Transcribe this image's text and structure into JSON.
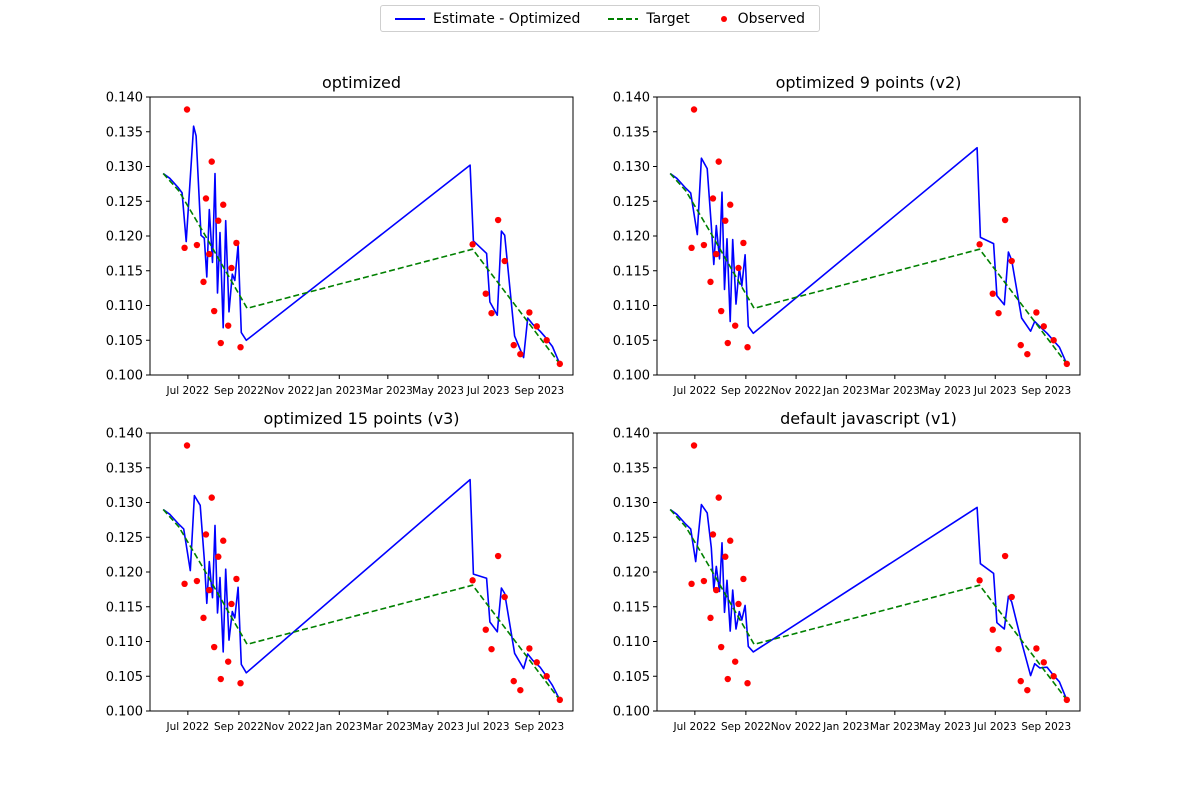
{
  "legend": {
    "estimate_label": "Estimate - Optimized",
    "target_label": "Target",
    "observed_label": "Observed"
  },
  "colors": {
    "estimate": "#0000ff",
    "target": "#008000",
    "observed": "#ff0000",
    "axes": "#000000"
  },
  "chart_data": [
    {
      "type": "line",
      "title": "optimized",
      "xlabel": "",
      "ylabel": "",
      "ylim": [
        0.1,
        0.14
      ],
      "xlim": [
        "2022-05-16",
        "2023-10-12"
      ],
      "yticks": [
        "0.100",
        "0.105",
        "0.110",
        "0.115",
        "0.120",
        "0.125",
        "0.130",
        "0.135",
        "0.140"
      ],
      "xticks": [
        "Jul 2022",
        "Sep 2022",
        "Nov 2022",
        "Jan 2023",
        "Mar 2023",
        "May 2023",
        "Jul 2023",
        "Sep 2023"
      ],
      "series": [
        {
          "name": "Estimate - Optimized",
          "style": "solid",
          "x": [
            "2022-06-01",
            "2022-06-09",
            "2022-06-19",
            "2022-06-24",
            "2022-06-29",
            "2022-07-08",
            "2022-07-11",
            "2022-07-17",
            "2022-07-21",
            "2022-07-24",
            "2022-07-27",
            "2022-07-31",
            "2022-08-03",
            "2022-08-06",
            "2022-08-09",
            "2022-08-13",
            "2022-08-16",
            "2022-08-20",
            "2022-08-24",
            "2022-08-27",
            "2022-08-31",
            "2022-09-04",
            "2022-09-10",
            "2023-06-09",
            "2023-06-13",
            "2023-06-29",
            "2023-07-03",
            "2023-07-12",
            "2023-07-17",
            "2023-07-21",
            "2023-08-02",
            "2023-08-13",
            "2023-08-18",
            "2023-08-24",
            "2023-09-02",
            "2023-09-08",
            "2023-09-17",
            "2023-09-26"
          ],
          "y": [
            0.129,
            0.1283,
            0.127,
            0.1262,
            0.1192,
            0.1358,
            0.1344,
            0.1201,
            0.1197,
            0.1141,
            0.1238,
            0.1162,
            0.129,
            0.1118,
            0.1205,
            0.1068,
            0.1222,
            0.1091,
            0.1145,
            0.1136,
            0.1187,
            0.1061,
            0.105,
            0.1302,
            0.1193,
            0.1175,
            0.1105,
            0.1086,
            0.1207,
            0.1201,
            0.1056,
            0.1025,
            0.1082,
            0.1073,
            0.1063,
            0.1055,
            0.1041,
            0.1016
          ]
        },
        {
          "name": "Target",
          "style": "dashed",
          "x": [
            "2022-06-01",
            "2022-06-20",
            "2022-07-20",
            "2022-09-11",
            "2023-06-12",
            "2023-09-26"
          ],
          "y": [
            0.129,
            0.1265,
            0.1205,
            0.1096,
            0.1181,
            0.1016
          ]
        },
        {
          "name": "Observed",
          "style": "points",
          "x": [
            "2022-06-27",
            "2022-06-30",
            "2022-07-12",
            "2022-07-20",
            "2022-07-23",
            "2022-07-27",
            "2022-07-30",
            "2022-08-02",
            "2022-08-07",
            "2022-08-10",
            "2022-08-13",
            "2022-08-19",
            "2022-08-23",
            "2022-08-29",
            "2022-09-03",
            "2023-06-12",
            "2023-06-28",
            "2023-07-05",
            "2023-07-13",
            "2023-07-21",
            "2023-08-01",
            "2023-08-09",
            "2023-08-20",
            "2023-08-29",
            "2023-09-10",
            "2023-09-26"
          ],
          "y": [
            0.1183,
            0.1382,
            0.1187,
            0.1134,
            0.1254,
            0.1174,
            0.1307,
            0.1092,
            0.1222,
            0.1046,
            0.1245,
            0.1071,
            0.1154,
            0.119,
            0.104,
            0.1188,
            0.1117,
            0.1089,
            0.1223,
            0.1164,
            0.1043,
            0.103,
            0.109,
            0.107,
            0.105,
            0.1016
          ]
        }
      ]
    },
    {
      "type": "line",
      "title": "optimized 9 points (v2)",
      "xlabel": "",
      "ylabel": "",
      "ylim": [
        0.1,
        0.14
      ],
      "xlim": [
        "2022-05-16",
        "2023-10-12"
      ],
      "yticks": [
        "0.100",
        "0.105",
        "0.110",
        "0.115",
        "0.120",
        "0.125",
        "0.130",
        "0.135",
        "0.140"
      ],
      "xticks": [
        "Jul 2022",
        "Sep 2022",
        "Nov 2022",
        "Jan 2023",
        "Mar 2023",
        "May 2023",
        "Jul 2023",
        "Sep 2023"
      ],
      "series": [
        {
          "name": "Estimate - Optimized",
          "style": "solid",
          "x": [
            "2022-06-01",
            "2022-06-09",
            "2022-06-19",
            "2022-06-26",
            "2022-07-04",
            "2022-07-09",
            "2022-07-16",
            "2022-07-21",
            "2022-07-24",
            "2022-07-27",
            "2022-07-31",
            "2022-08-03",
            "2022-08-06",
            "2022-08-09",
            "2022-08-13",
            "2022-08-16",
            "2022-08-20",
            "2022-08-24",
            "2022-08-27",
            "2022-08-31",
            "2022-09-04",
            "2022-09-10",
            "2023-06-09",
            "2023-06-13",
            "2023-06-29",
            "2023-07-03",
            "2023-07-12",
            "2023-07-17",
            "2023-07-21",
            "2023-08-02",
            "2023-08-13",
            "2023-08-18",
            "2023-08-24",
            "2023-09-02",
            "2023-09-08",
            "2023-09-17",
            "2023-09-26"
          ],
          "y": [
            0.129,
            0.1283,
            0.127,
            0.1262,
            0.1202,
            0.1312,
            0.1297,
            0.1215,
            0.1159,
            0.1215,
            0.1167,
            0.1263,
            0.1123,
            0.1196,
            0.1077,
            0.1195,
            0.1102,
            0.1155,
            0.1128,
            0.1173,
            0.107,
            0.106,
            0.1327,
            0.1198,
            0.1189,
            0.1114,
            0.1101,
            0.1177,
            0.1165,
            0.1082,
            0.1063,
            0.1077,
            0.107,
            0.106,
            0.1052,
            0.104,
            0.1016
          ]
        },
        {
          "name": "Target",
          "style": "dashed",
          "x": [
            "2022-06-01",
            "2022-06-20",
            "2022-07-20",
            "2022-09-11",
            "2023-06-12",
            "2023-09-26"
          ],
          "y": [
            0.129,
            0.1265,
            0.1205,
            0.1096,
            0.1181,
            0.1016
          ]
        },
        {
          "name": "Observed",
          "style": "points",
          "x": [
            "2022-06-27",
            "2022-06-30",
            "2022-07-12",
            "2022-07-20",
            "2022-07-23",
            "2022-07-27",
            "2022-07-30",
            "2022-08-02",
            "2022-08-07",
            "2022-08-10",
            "2022-08-13",
            "2022-08-19",
            "2022-08-23",
            "2022-08-29",
            "2022-09-03",
            "2023-06-12",
            "2023-06-28",
            "2023-07-05",
            "2023-07-13",
            "2023-07-21",
            "2023-08-01",
            "2023-08-09",
            "2023-08-20",
            "2023-08-29",
            "2023-09-10",
            "2023-09-26"
          ],
          "y": [
            0.1183,
            0.1382,
            0.1187,
            0.1134,
            0.1254,
            0.1174,
            0.1307,
            0.1092,
            0.1222,
            0.1046,
            0.1245,
            0.1071,
            0.1154,
            0.119,
            0.104,
            0.1188,
            0.1117,
            0.1089,
            0.1223,
            0.1164,
            0.1043,
            0.103,
            0.109,
            0.107,
            0.105,
            0.1016
          ]
        }
      ]
    },
    {
      "type": "line",
      "title": "optimized 15 points (v3)",
      "xlabel": "",
      "ylabel": "",
      "ylim": [
        0.1,
        0.14
      ],
      "xlim": [
        "2022-05-16",
        "2023-10-12"
      ],
      "yticks": [
        "0.100",
        "0.105",
        "0.110",
        "0.115",
        "0.120",
        "0.125",
        "0.130",
        "0.135",
        "0.140"
      ],
      "xticks": [
        "Jul 2022",
        "Sep 2022",
        "Nov 2022",
        "Jan 2023",
        "Mar 2023",
        "May 2023",
        "Jul 2023",
        "Sep 2023"
      ],
      "series": [
        {
          "name": "Estimate - Optimized",
          "style": "solid",
          "x": [
            "2022-06-01",
            "2022-06-09",
            "2022-06-19",
            "2022-06-26",
            "2022-07-04",
            "2022-07-09",
            "2022-07-16",
            "2022-07-21",
            "2022-07-24",
            "2022-07-27",
            "2022-07-31",
            "2022-08-03",
            "2022-08-06",
            "2022-08-09",
            "2022-08-13",
            "2022-08-16",
            "2022-08-20",
            "2022-08-24",
            "2022-08-27",
            "2022-08-31",
            "2022-09-04",
            "2022-09-10",
            "2023-06-09",
            "2023-06-13",
            "2023-06-29",
            "2023-07-03",
            "2023-07-12",
            "2023-07-17",
            "2023-07-21",
            "2023-08-02",
            "2023-08-13",
            "2023-08-18",
            "2023-08-24",
            "2023-09-02",
            "2023-09-08",
            "2023-09-17",
            "2023-09-26"
          ],
          "y": [
            0.129,
            0.1283,
            0.127,
            0.1262,
            0.1202,
            0.131,
            0.1296,
            0.1218,
            0.1155,
            0.1215,
            0.1163,
            0.1267,
            0.1141,
            0.1192,
            0.1085,
            0.1204,
            0.1102,
            0.1143,
            0.1134,
            0.1178,
            0.1067,
            0.1055,
            0.1333,
            0.1197,
            0.1191,
            0.1128,
            0.1114,
            0.1177,
            0.1169,
            0.1083,
            0.1061,
            0.1082,
            0.1073,
            0.1063,
            0.1053,
            0.1037,
            0.1016
          ]
        },
        {
          "name": "Target",
          "style": "dashed",
          "x": [
            "2022-06-01",
            "2022-06-20",
            "2022-07-20",
            "2022-09-11",
            "2023-06-12",
            "2023-09-26"
          ],
          "y": [
            0.129,
            0.1265,
            0.1205,
            0.1096,
            0.1181,
            0.1016
          ]
        },
        {
          "name": "Observed",
          "style": "points",
          "x": [
            "2022-06-27",
            "2022-06-30",
            "2022-07-12",
            "2022-07-20",
            "2022-07-23",
            "2022-07-27",
            "2022-07-30",
            "2022-08-02",
            "2022-08-07",
            "2022-08-10",
            "2022-08-13",
            "2022-08-19",
            "2022-08-23",
            "2022-08-29",
            "2022-09-03",
            "2023-06-12",
            "2023-06-28",
            "2023-07-05",
            "2023-07-13",
            "2023-07-21",
            "2023-08-01",
            "2023-08-09",
            "2023-08-20",
            "2023-08-29",
            "2023-09-10",
            "2023-09-26"
          ],
          "y": [
            0.1183,
            0.1382,
            0.1187,
            0.1134,
            0.1254,
            0.1174,
            0.1307,
            0.1092,
            0.1222,
            0.1046,
            0.1245,
            0.1071,
            0.1154,
            0.119,
            0.104,
            0.1188,
            0.1117,
            0.1089,
            0.1223,
            0.1164,
            0.1043,
            0.103,
            0.109,
            0.107,
            0.105,
            0.1016
          ]
        }
      ]
    },
    {
      "type": "line",
      "title": "default javascript (v1)",
      "xlabel": "",
      "ylabel": "",
      "ylim": [
        0.1,
        0.14
      ],
      "xlim": [
        "2022-05-16",
        "2023-10-12"
      ],
      "yticks": [
        "0.100",
        "0.105",
        "0.110",
        "0.115",
        "0.120",
        "0.125",
        "0.130",
        "0.135",
        "0.140"
      ],
      "xticks": [
        "Jul 2022",
        "Sep 2022",
        "Nov 2022",
        "Jan 2023",
        "Mar 2023",
        "May 2023",
        "Jul 2023",
        "Sep 2023"
      ],
      "series": [
        {
          "name": "Estimate - Optimized",
          "style": "solid",
          "x": [
            "2022-06-01",
            "2022-06-09",
            "2022-06-19",
            "2022-06-26",
            "2022-07-02",
            "2022-07-09",
            "2022-07-16",
            "2022-07-21",
            "2022-07-24",
            "2022-07-27",
            "2022-07-31",
            "2022-08-03",
            "2022-08-06",
            "2022-08-09",
            "2022-08-13",
            "2022-08-16",
            "2022-08-20",
            "2022-08-24",
            "2022-08-27",
            "2022-08-31",
            "2022-09-04",
            "2022-09-10",
            "2023-06-09",
            "2023-06-13",
            "2023-06-29",
            "2023-07-03",
            "2023-07-12",
            "2023-07-17",
            "2023-07-21",
            "2023-08-02",
            "2023-08-13",
            "2023-08-18",
            "2023-08-24",
            "2023-09-02",
            "2023-09-08",
            "2023-09-17",
            "2023-09-26"
          ],
          "y": [
            0.129,
            0.1283,
            0.127,
            0.1262,
            0.1215,
            0.1297,
            0.1285,
            0.1235,
            0.1175,
            0.1208,
            0.1172,
            0.1242,
            0.1142,
            0.1188,
            0.1115,
            0.1174,
            0.1118,
            0.1143,
            0.1131,
            0.1152,
            0.1093,
            0.1085,
            0.1293,
            0.1212,
            0.1198,
            0.1127,
            0.1118,
            0.1165,
            0.1157,
            0.1099,
            0.1051,
            0.1068,
            0.1062,
            0.1063,
            0.1054,
            0.1042,
            0.1016
          ]
        },
        {
          "name": "Target",
          "style": "dashed",
          "x": [
            "2022-06-01",
            "2022-06-20",
            "2022-07-20",
            "2022-09-11",
            "2023-06-12",
            "2023-09-26"
          ],
          "y": [
            0.129,
            0.1265,
            0.1205,
            0.1096,
            0.1181,
            0.1016
          ]
        },
        {
          "name": "Observed",
          "style": "points",
          "x": [
            "2022-06-27",
            "2022-06-30",
            "2022-07-12",
            "2022-07-20",
            "2022-07-23",
            "2022-07-27",
            "2022-07-30",
            "2022-08-02",
            "2022-08-07",
            "2022-08-10",
            "2022-08-13",
            "2022-08-19",
            "2022-08-23",
            "2022-08-29",
            "2022-09-03",
            "2023-06-12",
            "2023-06-28",
            "2023-07-05",
            "2023-07-13",
            "2023-07-21",
            "2023-08-01",
            "2023-08-09",
            "2023-08-20",
            "2023-08-29",
            "2023-09-10",
            "2023-09-26"
          ],
          "y": [
            0.1183,
            0.1382,
            0.1187,
            0.1134,
            0.1254,
            0.1174,
            0.1307,
            0.1092,
            0.1222,
            0.1046,
            0.1245,
            0.1071,
            0.1154,
            0.119,
            0.104,
            0.1188,
            0.1117,
            0.1089,
            0.1223,
            0.1164,
            0.1043,
            0.103,
            0.109,
            0.107,
            0.105,
            0.1016
          ]
        }
      ]
    }
  ]
}
